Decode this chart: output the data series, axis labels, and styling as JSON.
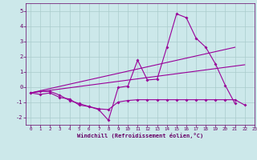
{
  "xlabel": "Windchill (Refroidissement éolien,°C)",
  "bg_color": "#cce8ea",
  "grid_color": "#aacccc",
  "line_color": "#990099",
  "x_values": [
    0,
    1,
    2,
    3,
    4,
    5,
    6,
    7,
    8,
    9,
    10,
    11,
    12,
    13,
    14,
    15,
    16,
    17,
    18,
    19,
    20,
    21,
    22,
    23
  ],
  "ylim": [
    -2.5,
    5.5
  ],
  "xlim": [
    -0.5,
    23
  ],
  "yticks": [
    -2,
    -1,
    0,
    1,
    2,
    3,
    4,
    5
  ],
  "xticks": [
    0,
    1,
    2,
    3,
    4,
    5,
    6,
    7,
    8,
    9,
    10,
    11,
    12,
    13,
    14,
    15,
    16,
    17,
    18,
    19,
    20,
    21,
    22,
    23
  ],
  "series1": [
    -0.4,
    -0.5,
    -0.4,
    -0.7,
    -0.8,
    -1.2,
    -1.3,
    -1.5,
    -2.2,
    -0.05,
    0.05,
    1.75,
    0.45,
    0.5,
    2.6,
    4.8,
    4.55,
    3.2,
    2.6,
    1.5,
    0.1,
    -1.1,
    null,
    null
  ],
  "series2": [
    -0.4,
    -0.3,
    -0.3,
    -0.55,
    -0.9,
    -1.1,
    -1.3,
    -1.45,
    -1.5,
    -1.0,
    -0.9,
    -0.85,
    -0.85,
    -0.85,
    -0.85,
    -0.85,
    -0.85,
    -0.85,
    -0.85,
    -0.85,
    -0.85,
    -0.85,
    -1.2,
    null
  ],
  "series3_x": [
    0,
    21
  ],
  "series3_y": [
    -0.4,
    2.6
  ],
  "series4_x": [
    0,
    22
  ],
  "series4_y": [
    -0.4,
    1.45
  ]
}
